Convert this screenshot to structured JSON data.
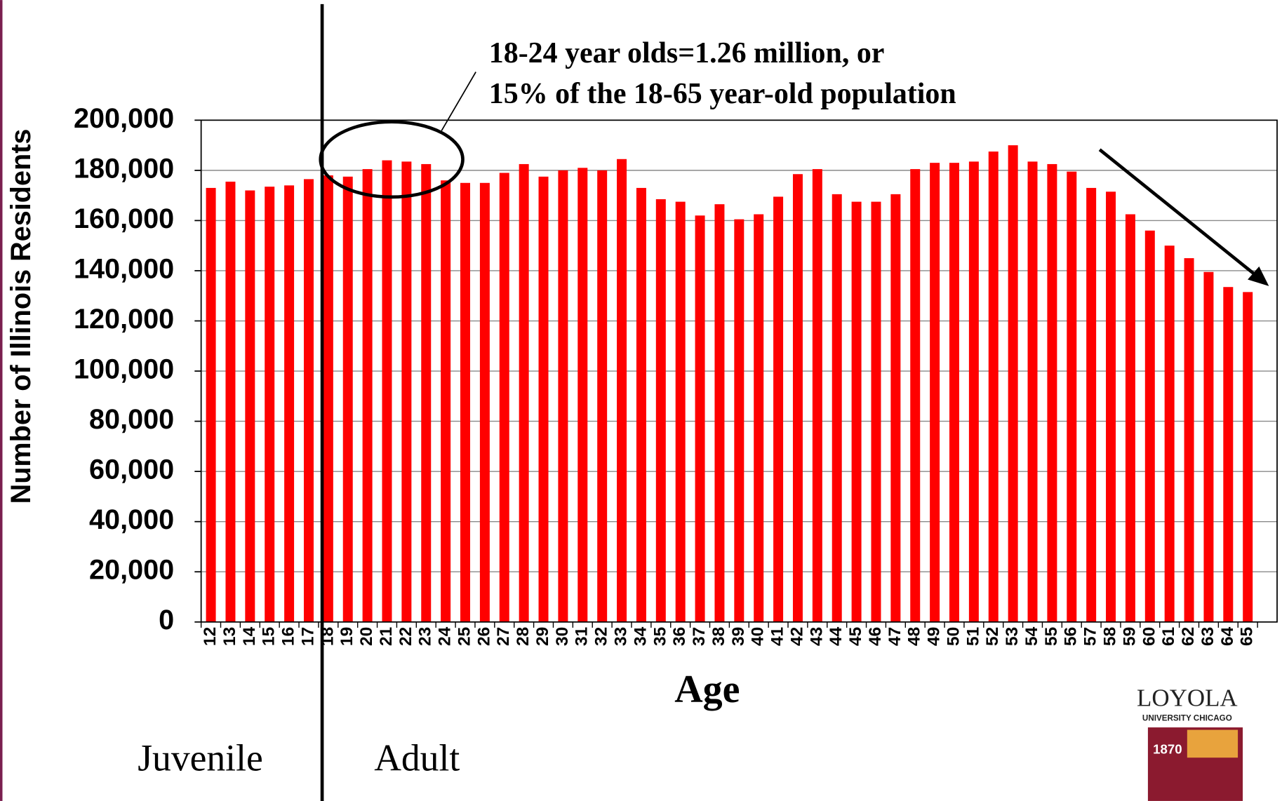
{
  "chart_data": {
    "type": "bar",
    "y_label": "Number of Illinois Residents",
    "x_label": "Age",
    "annotation": [
      "18-24 year olds=1.26 million, or",
      "15% of the 18-65 year-old population"
    ],
    "regions": [
      "Juvenile",
      "Adult"
    ],
    "logo": [
      "LOYOLA",
      "UNIVERSITY CHICAGO",
      "1870"
    ],
    "categories": [
      "12",
      "13",
      "14",
      "15",
      "16",
      "17",
      "18",
      "19",
      "20",
      "21",
      "22",
      "23",
      "24",
      "25",
      "26",
      "27",
      "28",
      "29",
      "30",
      "31",
      "32",
      "33",
      "34",
      "35",
      "36",
      "37",
      "38",
      "39",
      "40",
      "41",
      "42",
      "43",
      "44",
      "45",
      "46",
      "47",
      "48",
      "49",
      "50",
      "51",
      "52",
      "53",
      "54",
      "55",
      "56",
      "57",
      "58",
      "59",
      "60",
      "61",
      "62",
      "63",
      "64",
      "65",
      null
    ],
    "values": [
      173000,
      175500,
      172000,
      173500,
      174000,
      176500,
      178000,
      177500,
      180500,
      184000,
      183500,
      182500,
      176000,
      175000,
      175000,
      179000,
      182500,
      177500,
      180000,
      181000,
      180000,
      184500,
      173000,
      168500,
      167500,
      162000,
      166500,
      160500,
      162500,
      169500,
      178500,
      180500,
      170500,
      167500,
      167500,
      170500,
      180500,
      183000,
      183000,
      183500,
      187500,
      190000,
      183500,
      182500,
      179500,
      173000,
      171500,
      162500,
      156000,
      150000,
      145000,
      139500,
      133500,
      131500,
      null
    ],
    "color": "#ff0000",
    "ylim": [
      0,
      200000
    ],
    "yticks": [
      0,
      {
        "value": 20000,
        "label": "20,000"
      },
      {
        "value": 40000,
        "label": "40,000"
      },
      {
        "value": 60000,
        "label": "60,000"
      },
      {
        "value": 80000,
        "label": "80,000"
      },
      {
        "value": 100000,
        "label": "100,000"
      },
      {
        "value": 120000,
        "label": "120,000"
      },
      {
        "value": 140000,
        "label": "140,000"
      },
      {
        "value": 160000,
        "label": "160,000"
      },
      {
        "value": 180000,
        "label": "180,000"
      },
      {
        "value": 200000,
        "label": "200,000"
      }
    ],
    "grid": true
  }
}
